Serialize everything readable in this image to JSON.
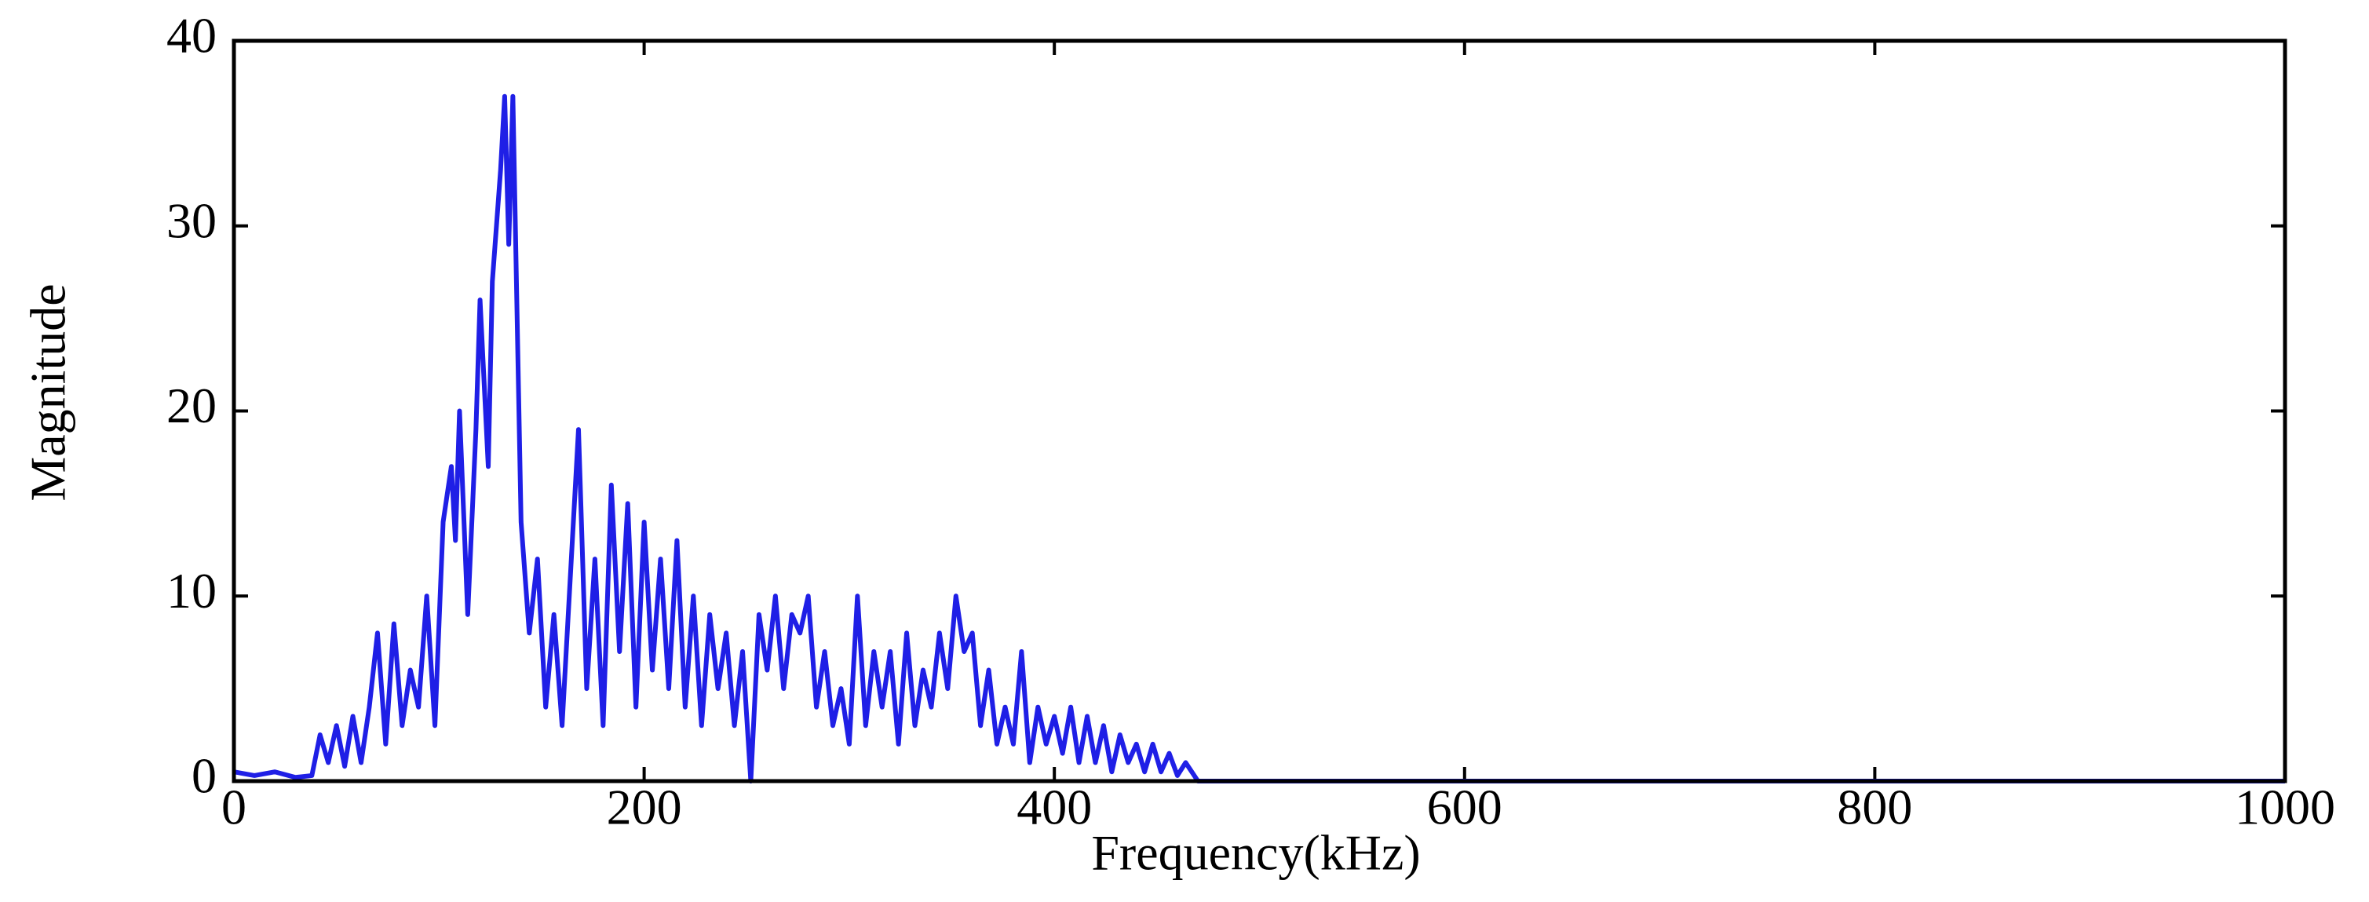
{
  "chart_data": {
    "type": "line",
    "x_label": "Frequency(kHz)",
    "y_label": "Magnitude",
    "xlim": [
      0,
      1000
    ],
    "xticks": [
      0,
      200,
      400,
      600,
      800,
      1000
    ],
    "ylim": [
      0,
      40
    ],
    "yticks": [
      0,
      10,
      20,
      30,
      40
    ],
    "grid": false,
    "x": [
      0,
      10,
      20,
      30,
      38,
      42,
      46,
      50,
      54,
      58,
      62,
      66,
      70,
      74,
      78,
      82,
      86,
      90,
      94,
      98,
      102,
      106,
      108,
      110,
      114,
      118,
      120,
      124,
      126,
      130,
      132,
      134,
      136,
      140,
      144,
      148,
      152,
      156,
      160,
      164,
      168,
      172,
      176,
      180,
      184,
      188,
      192,
      196,
      200,
      204,
      208,
      212,
      216,
      220,
      224,
      228,
      232,
      236,
      240,
      244,
      248,
      252,
      256,
      260,
      264,
      268,
      272,
      276,
      280,
      284,
      288,
      292,
      296,
      300,
      304,
      308,
      312,
      316,
      320,
      324,
      328,
      332,
      336,
      340,
      344,
      348,
      352,
      356,
      360,
      364,
      368,
      372,
      376,
      380,
      384,
      388,
      392,
      396,
      400,
      404,
      408,
      412,
      416,
      420,
      424,
      428,
      432,
      436,
      440,
      444,
      448,
      452,
      456,
      460,
      464,
      470,
      480,
      1000
    ],
    "series": [
      {
        "color": "#1f1fe6",
        "values": [
          0.5,
          0.3,
          0.5,
          0.2,
          0.3,
          2.5,
          1,
          3,
          0.8,
          3.5,
          1,
          4,
          8,
          2,
          8.5,
          3,
          6,
          4,
          10,
          3,
          14,
          17,
          13,
          20,
          9,
          19,
          26,
          17,
          27,
          33,
          37,
          29,
          37,
          14,
          8,
          12,
          4,
          9,
          3,
          11,
          19,
          5,
          12,
          3,
          16,
          7,
          15,
          4,
          14,
          6,
          12,
          5,
          13,
          4,
          10,
          3,
          9,
          5,
          8,
          3,
          7,
          0,
          9,
          6,
          10,
          5,
          9,
          8,
          10,
          4,
          7,
          3,
          5,
          2,
          10,
          3,
          7,
          4,
          7,
          2,
          8,
          3,
          6,
          4,
          8,
          5,
          10,
          7,
          8,
          3,
          6,
          2,
          4,
          2,
          7,
          1,
          4,
          2,
          3.5,
          1.5,
          4,
          1,
          3.5,
          1,
          3,
          0.5,
          2.5,
          1,
          2,
          0.5,
          2,
          0.5,
          1.5,
          0.3,
          1,
          0,
          0,
          0
        ]
      }
    ]
  }
}
